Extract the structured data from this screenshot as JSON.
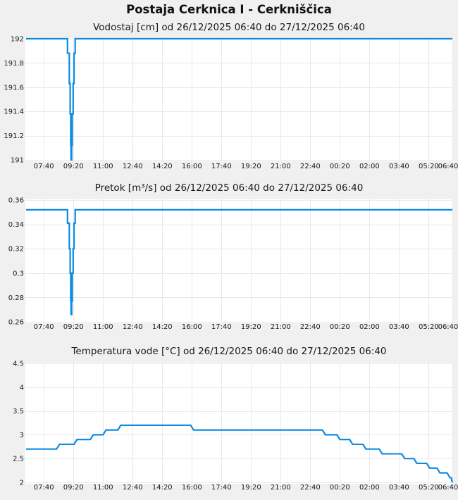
{
  "page": {
    "title": "Postaja Cerknica I - Cerkniščica"
  },
  "colors": {
    "line": "#0a8ce1",
    "grid": "#e8e8e8",
    "plot_background": "#ffffff",
    "page_background": "#f0f0f0",
    "text": "#1a1a1a"
  },
  "chart_data": [
    {
      "type": "line",
      "name": "vodostaj",
      "title": "Vodostaj [cm] od 26/12/2025 06:40 do 27/12/2025 06:40",
      "quantity": "Vodostaj",
      "unit": "cm",
      "interpolation": "step",
      "time_start": "26/12/2025 06:40",
      "time_end": "27/12/2025 06:40",
      "xlim_minutes": [
        0,
        1440
      ],
      "x_ticks": {
        "minutes": [
          60,
          160,
          260,
          360,
          460,
          560,
          660,
          760,
          860,
          960,
          1060,
          1160,
          1260,
          1360,
          1440
        ],
        "labels": [
          "07:40",
          "09:20",
          "11:00",
          "12:40",
          "14:20",
          "16:00",
          "17:40",
          "19:20",
          "21:00",
          "22:40",
          "00:20",
          "02:00",
          "03:40",
          "05:20",
          "06:40"
        ]
      },
      "ylim": [
        191,
        192
      ],
      "y_ticks": {
        "values": [
          191,
          191.2,
          191.4,
          191.6,
          191.8,
          192
        ],
        "labels": [
          "191",
          "191.2",
          "191.4",
          "191.6",
          "191.8",
          "192"
        ]
      },
      "points_minutes_value": [
        [
          0,
          192
        ],
        [
          140,
          191.88
        ],
        [
          146,
          191.63
        ],
        [
          149,
          191.38
        ],
        [
          151,
          191.12
        ],
        [
          152,
          191
        ],
        [
          154,
          191.12
        ],
        [
          156,
          191.38
        ],
        [
          159,
          191.63
        ],
        [
          162,
          191.88
        ],
        [
          166,
          192
        ],
        [
          1440,
          192
        ]
      ]
    },
    {
      "type": "line",
      "name": "pretok",
      "title": "Pretok [m³/s] od 26/12/2025 06:40 do 27/12/2025 06:40",
      "quantity": "Pretok",
      "unit": "m³/s",
      "interpolation": "step",
      "time_start": "26/12/2025 06:40",
      "time_end": "27/12/2025 06:40",
      "xlim_minutes": [
        0,
        1440
      ],
      "x_ticks": {
        "minutes": [
          60,
          160,
          260,
          360,
          460,
          560,
          660,
          760,
          860,
          960,
          1060,
          1160,
          1260,
          1360,
          1440
        ],
        "labels": [
          "07:40",
          "09:20",
          "11:00",
          "12:40",
          "14:20",
          "16:00",
          "17:40",
          "19:20",
          "21:00",
          "22:40",
          "00:20",
          "02:00",
          "03:40",
          "05:20",
          "06:40"
        ]
      },
      "ylim": [
        0.26,
        0.36
      ],
      "y_ticks": {
        "values": [
          0.26,
          0.28,
          0.3,
          0.32,
          0.34,
          0.36
        ],
        "labels": [
          "0.26",
          "0.28",
          "0.3",
          "0.32",
          "0.34",
          "0.36"
        ]
      },
      "points_minutes_value": [
        [
          0,
          0.352
        ],
        [
          140,
          0.341
        ],
        [
          146,
          0.32
        ],
        [
          149,
          0.3
        ],
        [
          151,
          0.277
        ],
        [
          152,
          0.266
        ],
        [
          154,
          0.277
        ],
        [
          156,
          0.3
        ],
        [
          159,
          0.32
        ],
        [
          162,
          0.341
        ],
        [
          166,
          0.352
        ],
        [
          1440,
          0.352
        ]
      ]
    },
    {
      "type": "line",
      "name": "temperatura-vode",
      "title": "Temperatura vode [°C] od 26/12/2025 06:40 do 27/12/2025 06:40",
      "quantity": "Temperatura vode",
      "unit": "°C",
      "interpolation": "linear",
      "time_start": "26/12/2025 06:40",
      "time_end": "27/12/2025 06:40",
      "xlim_minutes": [
        0,
        1440
      ],
      "x_ticks": {
        "minutes": [
          60,
          160,
          260,
          360,
          460,
          560,
          660,
          760,
          860,
          960,
          1060,
          1160,
          1260,
          1360,
          1440
        ],
        "labels": [
          "07:40",
          "09:20",
          "11:00",
          "12:40",
          "14:20",
          "16:00",
          "17:40",
          "19:20",
          "21:00",
          "22:40",
          "00:20",
          "02:00",
          "03:40",
          "05:20",
          "06:40"
        ]
      },
      "ylim": [
        2,
        4.5
      ],
      "y_ticks": {
        "values": [
          2,
          2.5,
          3,
          3.5,
          4,
          4.5
        ],
        "labels": [
          "2",
          "2.5",
          "3",
          "3.5",
          "4",
          "4.5"
        ]
      },
      "points_minutes_value": [
        [
          0,
          2.7
        ],
        [
          103,
          2.7
        ],
        [
          113,
          2.8
        ],
        [
          162,
          2.8
        ],
        [
          172,
          2.9
        ],
        [
          217,
          2.9
        ],
        [
          227,
          3.0
        ],
        [
          260,
          3.0
        ],
        [
          270,
          3.1
        ],
        [
          310,
          3.1
        ],
        [
          320,
          3.2
        ],
        [
          556,
          3.2
        ],
        [
          566,
          3.1
        ],
        [
          1001,
          3.1
        ],
        [
          1011,
          3.0
        ],
        [
          1050,
          3.0
        ],
        [
          1060,
          2.9
        ],
        [
          1093,
          2.9
        ],
        [
          1103,
          2.8
        ],
        [
          1138,
          2.8
        ],
        [
          1148,
          2.7
        ],
        [
          1193,
          2.7
        ],
        [
          1203,
          2.6
        ],
        [
          1269,
          2.6
        ],
        [
          1279,
          2.5
        ],
        [
          1310,
          2.5
        ],
        [
          1320,
          2.4
        ],
        [
          1353,
          2.4
        ],
        [
          1363,
          2.3
        ],
        [
          1388,
          2.3
        ],
        [
          1398,
          2.2
        ],
        [
          1422,
          2.2
        ],
        [
          1432,
          2.1
        ],
        [
          1436,
          2.1
        ],
        [
          1440,
          2.0
        ]
      ]
    }
  ]
}
